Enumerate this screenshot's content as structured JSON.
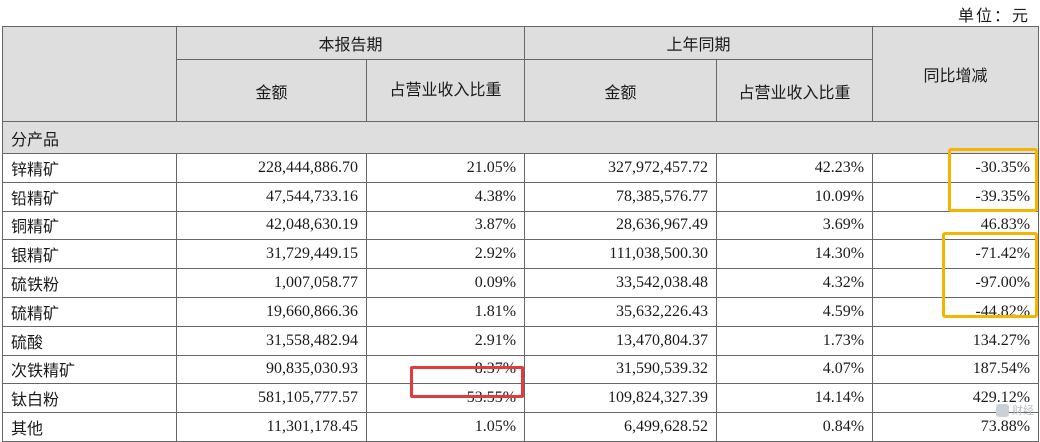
{
  "unit_label": "单位：元",
  "headers": {
    "current_period": "本报告期",
    "prior_period": "上年同期",
    "yoy_change": "同比增减",
    "amount": "金额",
    "share_current": "占营业收入比重",
    "share_prior": "占营业收入比重"
  },
  "group_label": "分产品",
  "rows": [
    {
      "product": "锌精矿",
      "cur_amount": "228,444,886.70",
      "cur_share": "21.05%",
      "prior_amount": "327,972,457.72",
      "prior_share": "42.23%",
      "yoy": "-30.35%"
    },
    {
      "product": "铅精矿",
      "cur_amount": "47,544,733.16",
      "cur_share": "4.38%",
      "prior_amount": "78,385,576.77",
      "prior_share": "10.09%",
      "yoy": "-39.35%"
    },
    {
      "product": "铜精矿",
      "cur_amount": "42,048,630.19",
      "cur_share": "3.87%",
      "prior_amount": "28,636,967.49",
      "prior_share": "3.69%",
      "yoy": "46.83%"
    },
    {
      "product": "银精矿",
      "cur_amount": "31,729,449.15",
      "cur_share": "2.92%",
      "prior_amount": "111,038,500.30",
      "prior_share": "14.30%",
      "yoy": "-71.42%"
    },
    {
      "product": "硫铁粉",
      "cur_amount": "1,007,058.77",
      "cur_share": "0.09%",
      "prior_amount": "33,542,038.48",
      "prior_share": "4.32%",
      "yoy": "-97.00%"
    },
    {
      "product": "硫精矿",
      "cur_amount": "19,660,866.36",
      "cur_share": "1.81%",
      "prior_amount": "35,632,226.43",
      "prior_share": "4.59%",
      "yoy": "-44.82%"
    },
    {
      "product": "硫酸",
      "cur_amount": "31,558,482.94",
      "cur_share": "2.91%",
      "prior_amount": "13,470,804.37",
      "prior_share": "1.73%",
      "yoy": "134.27%"
    },
    {
      "product": "次铁精矿",
      "cur_amount": "90,835,030.93",
      "cur_share": "8.37%",
      "prior_amount": "31,590,539.32",
      "prior_share": "4.07%",
      "yoy": "187.54%"
    },
    {
      "product": "钛白粉",
      "cur_amount": "581,105,777.57",
      "cur_share": "53.55%",
      "prior_amount": "109,824,327.39",
      "prior_share": "14.14%",
      "yoy": "429.12%"
    },
    {
      "product": "其他",
      "cur_amount": "11,301,178.45",
      "cur_share": "1.05%",
      "prior_amount": "6,499,628.52",
      "prior_share": "0.84%",
      "yoy": "73.88%"
    }
  ],
  "highlight_colors": {
    "yellow": "#f5b400",
    "red": "#e23b3b"
  },
  "watermark": "财经"
}
